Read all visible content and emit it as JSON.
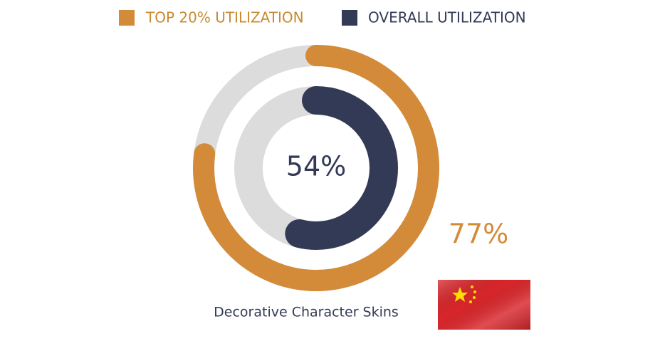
{
  "chart_data": {
    "type": "radial",
    "categories": [
      "Decorative Character Skins"
    ],
    "series": [
      {
        "name": "TOP 20% UTILIZATION",
        "color": "#d38b3a",
        "values": [
          77
        ],
        "value_labels": [
          "77%"
        ]
      },
      {
        "name": "OVERALL UTILIZATION",
        "color": "#333a56",
        "values": [
          54
        ],
        "value_labels": [
          "54%"
        ]
      }
    ],
    "ylim": [
      0,
      100
    ]
  }
}
